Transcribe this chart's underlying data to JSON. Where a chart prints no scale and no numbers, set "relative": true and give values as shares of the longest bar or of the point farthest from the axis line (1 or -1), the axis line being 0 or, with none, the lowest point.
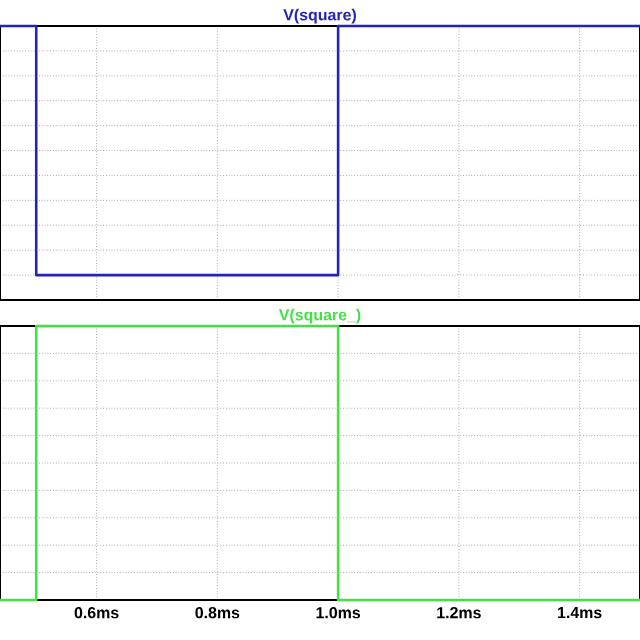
{
  "chart_data": [
    {
      "type": "line",
      "relative": true,
      "grid": true,
      "tick_labels": false,
      "xlim": [
        0.44,
        1.5
      ],
      "xticks": [
        {
          "value": 0.6,
          "label": null
        },
        {
          "value": 0.8,
          "label": null
        },
        {
          "value": 1.0,
          "label": null
        },
        {
          "value": 1.2,
          "label": null
        },
        {
          "value": 1.4,
          "label": null
        }
      ],
      "x": [
        0.44,
        0.5,
        0.5,
        1.0,
        1.0,
        1.5
      ],
      "series": [
        {
          "name": "V(square)",
          "color": "#2424b4",
          "values": [
            1,
            1,
            0,
            0,
            1,
            1
          ]
        }
      ]
    },
    {
      "type": "line",
      "relative": true,
      "grid": true,
      "tick_labels": "x",
      "xlim": [
        0.44,
        1.5
      ],
      "xticks": [
        {
          "value": 0.6,
          "label": "0.6ms"
        },
        {
          "value": 0.8,
          "label": "0.8ms"
        },
        {
          "value": 1.0,
          "label": "1.0ms"
        },
        {
          "value": 1.2,
          "label": "1.2ms"
        },
        {
          "value": 1.4,
          "label": "1.4ms"
        }
      ],
      "x": [
        0.44,
        0.5,
        0.5,
        1.0,
        1.0,
        1.5
      ],
      "series": [
        {
          "name": "V(square_)",
          "color": "#44e044",
          "values": [
            0,
            0,
            1,
            1,
            0,
            0
          ]
        }
      ]
    }
  ]
}
